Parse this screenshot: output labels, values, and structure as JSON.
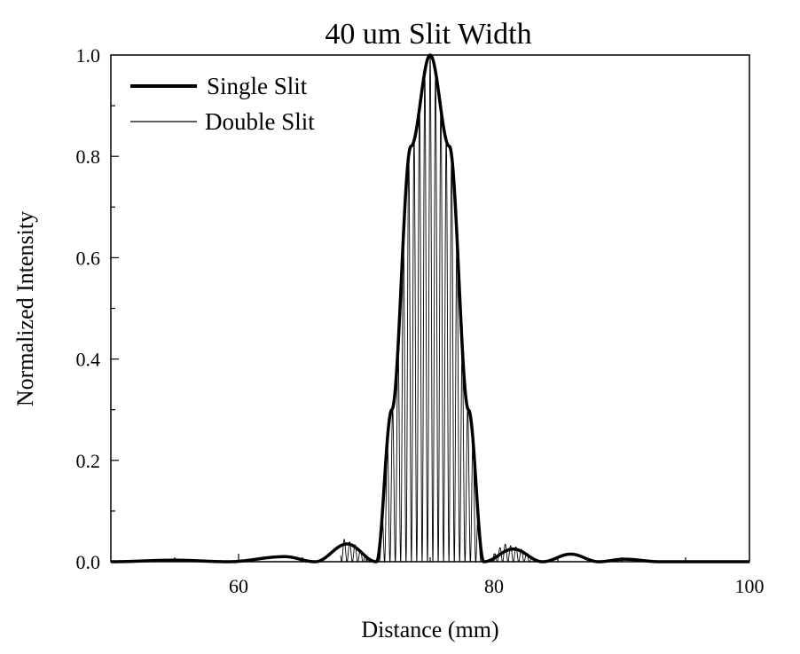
{
  "chart_data": {
    "type": "line",
    "title": "40 um Slit Width",
    "xlabel": "Distance (mm)",
    "ylabel": "Normalized Intensity",
    "xlim": [
      50,
      100
    ],
    "ylim": [
      0,
      1.0
    ],
    "x_ticks": [
      60,
      80,
      100
    ],
    "y_ticks": [
      "0.0",
      "0.2",
      "0.4",
      "0.6",
      "0.8",
      "1.0"
    ],
    "legend_position": "top-left",
    "grid": false,
    "series": [
      {
        "name": "Single Slit",
        "style": "thick",
        "color": "#000000",
        "x": [
          50,
          55,
          59.2,
          63.6,
          66.0,
          68.5,
          70.8,
          72.0,
          73.5,
          75.0,
          76.5,
          78.0,
          79.2,
          81.5,
          83.8,
          86.0,
          88.2,
          90.2,
          93.0,
          100
        ],
        "y": [
          0.0,
          0.003,
          0.0,
          0.01,
          0.0,
          0.035,
          0.0,
          0.3,
          0.82,
          1.0,
          0.82,
          0.3,
          0.0,
          0.025,
          0.0,
          0.015,
          0.0,
          0.005,
          0.0,
          0.0
        ]
      },
      {
        "name": "Double Slit",
        "style": "thin",
        "color": "#000000",
        "x": [
          68.0,
          68.5,
          70.8,
          72.0,
          73.5,
          74.6,
          75.0,
          75.4,
          76.5,
          78.0,
          79.2,
          81.0,
          81.5,
          83.8
        ],
        "y": [
          0.05,
          0.04,
          0.0,
          0.3,
          0.82,
          0.96,
          1.0,
          0.96,
          0.82,
          0.3,
          0.0,
          0.035,
          0.03,
          0.0
        ]
      }
    ]
  }
}
